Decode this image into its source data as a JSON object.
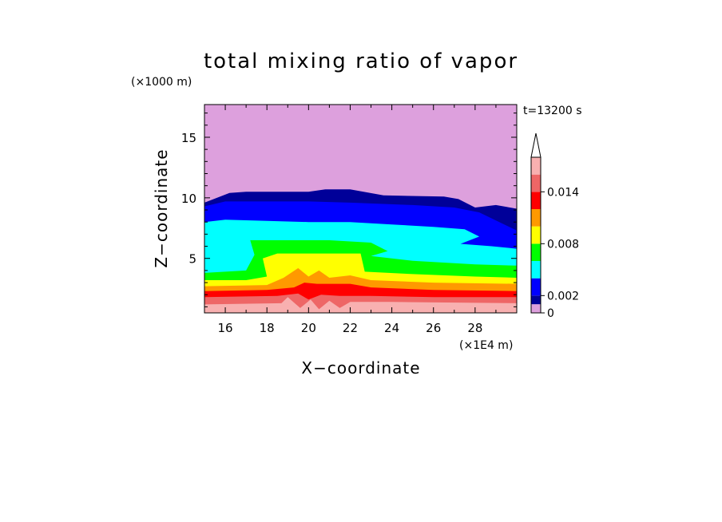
{
  "chart_data": {
    "type": "heatmap",
    "title": "total mixing ratio of vapor",
    "xlabel": "X−coordinate",
    "ylabel": "Z−coordinate",
    "x_unit": "(×1E4 m)",
    "y_unit": "(×1000 m)",
    "time_label": "t=13200 s",
    "xlim": [
      15,
      30
    ],
    "ylim": [
      0.5,
      17.7
    ],
    "x_ticks": [
      16,
      18,
      20,
      22,
      24,
      26,
      28
    ],
    "y_ticks": [
      5,
      10,
      15
    ],
    "colorbar": {
      "levels": [
        0,
        0.001,
        0.002,
        0.004,
        0.006,
        0.008,
        0.01,
        0.012,
        0.014,
        0.016,
        0.018
      ],
      "tick_values": [
        0,
        0.002,
        0.008,
        0.014
      ],
      "tick_labels": [
        "0",
        "0.002",
        "0.008",
        "0.014"
      ],
      "colors": [
        "#dda0dd",
        "#000099",
        "#0000ff",
        "#00ffff",
        "#00ff00",
        "#ffff00",
        "#ff9900",
        "#ff0000",
        "#ee6666",
        "#f8b0b0"
      ],
      "extend": "max"
    },
    "layers": [
      {
        "color": "#000099",
        "top": [
          [
            15,
            9.6
          ],
          [
            16.2,
            10.4
          ],
          [
            17,
            10.5
          ],
          [
            20,
            10.5
          ],
          [
            20.8,
            10.7
          ],
          [
            22,
            10.7
          ],
          [
            23.6,
            10.2
          ],
          [
            26.5,
            10.1
          ],
          [
            27.2,
            9.9
          ],
          [
            28,
            9.2
          ],
          [
            29,
            9.4
          ],
          [
            30,
            9.1
          ]
        ]
      },
      {
        "color": "#0000ff",
        "top": [
          [
            15,
            9.3
          ],
          [
            16,
            9.7
          ],
          [
            20,
            9.7
          ],
          [
            22,
            9.6
          ],
          [
            25,
            9.4
          ],
          [
            27,
            9.2
          ],
          [
            28.2,
            8.8
          ],
          [
            30,
            7.3
          ]
        ]
      },
      {
        "color": "#00ffff",
        "top": [
          [
            15,
            8.0
          ],
          [
            16,
            8.2
          ],
          [
            20,
            8.0
          ],
          [
            22,
            8.0
          ],
          [
            24,
            7.8
          ],
          [
            26,
            7.6
          ],
          [
            27.5,
            7.4
          ],
          [
            28.2,
            6.8
          ],
          [
            27.3,
            6.2
          ],
          [
            28.8,
            6.0
          ],
          [
            30,
            5.8
          ]
        ]
      },
      {
        "color": "#00ff00",
        "top": [
          [
            15,
            3.8
          ],
          [
            17,
            4.0
          ],
          [
            17.4,
            5.3
          ],
          [
            17.2,
            6.5
          ],
          [
            19,
            6.5
          ],
          [
            21,
            6.5
          ],
          [
            23,
            6.3
          ],
          [
            23.8,
            5.6
          ],
          [
            23,
            5.2
          ],
          [
            25,
            4.8
          ],
          [
            28,
            4.5
          ],
          [
            30,
            4.4
          ]
        ]
      },
      {
        "color": "#ffff00",
        "top": [
          [
            15,
            3.2
          ],
          [
            17,
            3.2
          ],
          [
            18,
            3.5
          ],
          [
            17.8,
            5.0
          ],
          [
            18.5,
            5.4
          ],
          [
            21,
            5.4
          ],
          [
            22.5,
            5.4
          ],
          [
            22.7,
            3.9
          ],
          [
            25,
            3.7
          ],
          [
            28,
            3.5
          ],
          [
            30,
            3.4
          ]
        ]
      },
      {
        "color": "#ff9900",
        "top": [
          [
            15,
            2.7
          ],
          [
            18,
            2.8
          ],
          [
            18.8,
            3.4
          ],
          [
            19.5,
            4.2
          ],
          [
            20,
            3.5
          ],
          [
            20.5,
            4.0
          ],
          [
            21,
            3.4
          ],
          [
            22,
            3.6
          ],
          [
            23,
            3.2
          ],
          [
            26,
            3.0
          ],
          [
            30,
            2.9
          ]
        ]
      },
      {
        "color": "#ff0000",
        "top": [
          [
            15,
            2.3
          ],
          [
            18,
            2.4
          ],
          [
            19.3,
            2.6
          ],
          [
            19.8,
            3.0
          ],
          [
            20.4,
            2.9
          ],
          [
            22,
            2.9
          ],
          [
            23,
            2.6
          ],
          [
            26,
            2.4
          ],
          [
            30,
            2.3
          ]
        ]
      },
      {
        "color": "#ee6666",
        "top": [
          [
            15,
            1.8
          ],
          [
            18.5,
            1.9
          ],
          [
            19.5,
            2.1
          ],
          [
            20,
            1.6
          ],
          [
            20.6,
            2.0
          ],
          [
            21.5,
            1.9
          ],
          [
            23,
            1.9
          ],
          [
            26,
            1.8
          ],
          [
            30,
            1.8
          ]
        ]
      },
      {
        "color": "#f8b0b0",
        "top": [
          [
            15,
            1.2
          ],
          [
            18.7,
            1.3
          ],
          [
            19,
            1.8
          ],
          [
            19.6,
            0.9
          ],
          [
            20.1,
            1.6
          ],
          [
            20.5,
            0.8
          ],
          [
            21,
            1.5
          ],
          [
            21.5,
            0.9
          ],
          [
            22,
            1.4
          ],
          [
            24,
            1.4
          ],
          [
            30,
            1.3
          ]
        ]
      }
    ]
  }
}
